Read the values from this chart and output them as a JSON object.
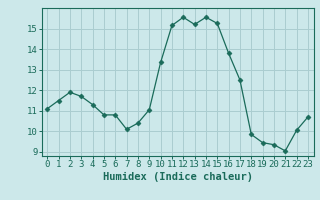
{
  "x": [
    0,
    1,
    2,
    3,
    4,
    5,
    6,
    7,
    8,
    9,
    10,
    11,
    12,
    13,
    14,
    15,
    16,
    17,
    18,
    19,
    20,
    21,
    22,
    23
  ],
  "y": [
    11.1,
    11.5,
    11.9,
    11.7,
    11.3,
    10.8,
    10.8,
    10.1,
    10.4,
    11.05,
    13.35,
    15.15,
    15.55,
    15.2,
    15.55,
    15.25,
    13.8,
    12.5,
    9.85,
    9.45,
    9.35,
    9.05,
    10.05,
    10.7
  ],
  "line_color": "#1a6b5a",
  "marker": "D",
  "marker_size": 2.5,
  "bg_color": "#cce8ea",
  "grid_color": "#aacdd0",
  "xlabel": "Humidex (Indice chaleur)",
  "xlim": [
    -0.5,
    23.5
  ],
  "ylim": [
    8.8,
    16.0
  ],
  "yticks": [
    9,
    10,
    11,
    12,
    13,
    14,
    15
  ],
  "xticks": [
    0,
    1,
    2,
    3,
    4,
    5,
    6,
    7,
    8,
    9,
    10,
    11,
    12,
    13,
    14,
    15,
    16,
    17,
    18,
    19,
    20,
    21,
    22,
    23
  ],
  "label_fontsize": 7.5,
  "tick_fontsize": 6.5
}
